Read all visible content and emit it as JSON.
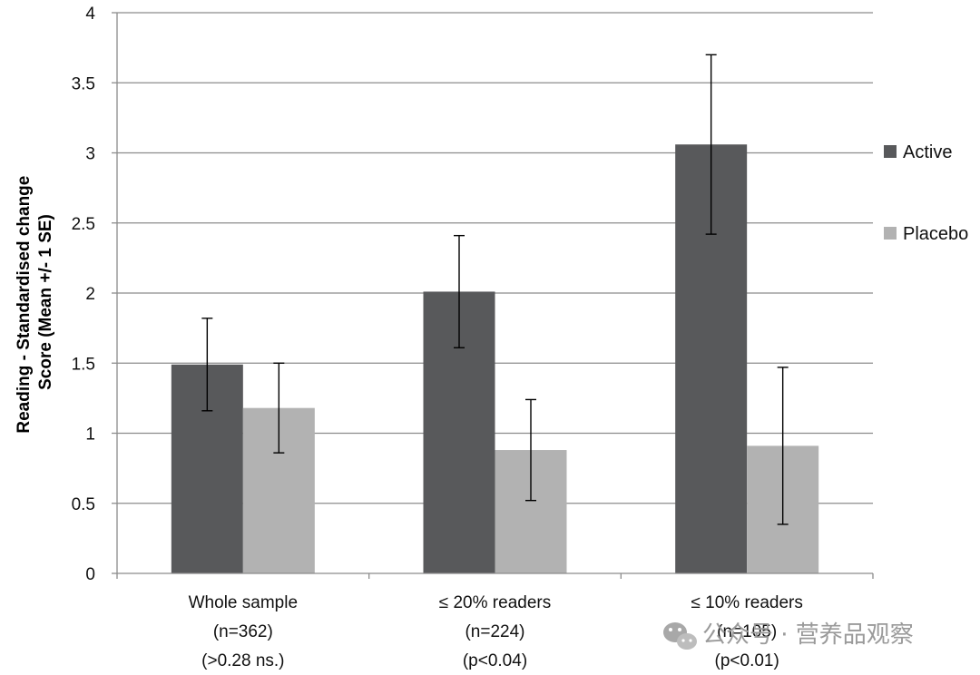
{
  "chart_data": {
    "type": "bar",
    "ylabel": [
      "Reading - Standardised change",
      "Score (Mean +/- 1 SE)"
    ],
    "ylim": [
      0,
      4
    ],
    "yticks": [
      "0",
      "0.5",
      "1",
      "1.5",
      "2",
      "2.5",
      "3",
      "3.5",
      "4"
    ],
    "grid": true,
    "legend_position": "right",
    "categories": [
      [
        "Whole sample",
        "(n=362)",
        "(>0.28 ns.)"
      ],
      [
        "≤ 20% readers",
        "(n=224)",
        "(p<0.04)"
      ],
      [
        "≤ 10% readers",
        "(n=105)",
        "(p<0.01)"
      ]
    ],
    "series": [
      {
        "name": "Active",
        "color": "#58595b",
        "values": [
          1.49,
          2.01,
          3.06
        ],
        "error": [
          [
            1.16,
            1.82
          ],
          [
            1.61,
            2.41
          ],
          [
            2.42,
            3.7
          ]
        ]
      },
      {
        "name": "Placebo",
        "color": "#b2b2b2",
        "values": [
          1.18,
          0.88,
          0.91
        ],
        "error": [
          [
            0.86,
            1.5
          ],
          [
            0.52,
            1.24
          ],
          [
            0.35,
            1.47
          ]
        ]
      }
    ]
  },
  "watermark": {
    "text": "公众号 · 营养品观察",
    "icon": "wechat-icon"
  }
}
